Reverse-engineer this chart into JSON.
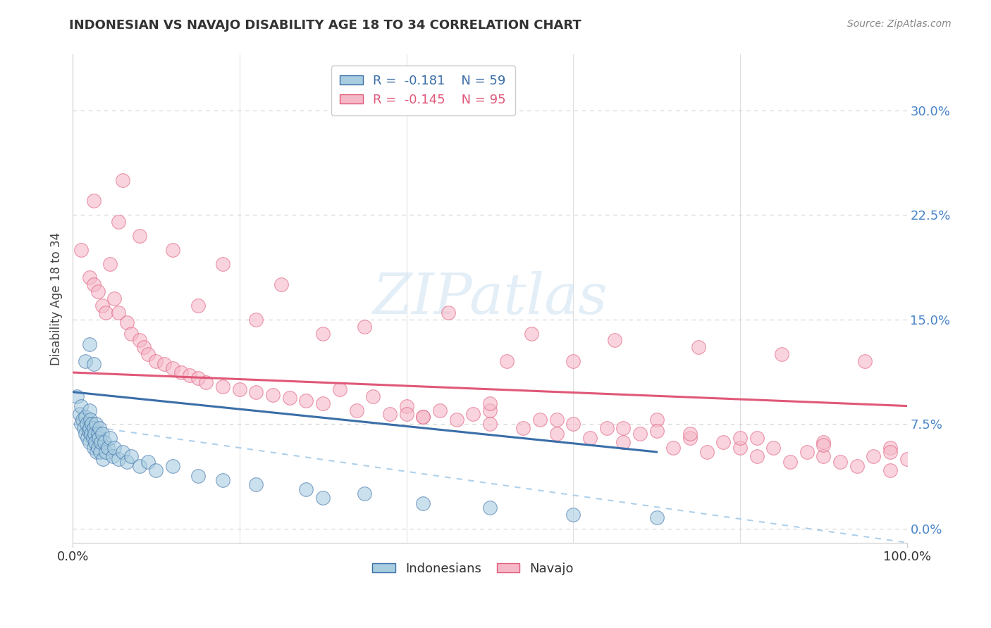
{
  "title": "INDONESIAN VS NAVAJO DISABILITY AGE 18 TO 34 CORRELATION CHART",
  "source": "Source: ZipAtlas.com",
  "ylabel": "Disability Age 18 to 34",
  "xlim": [
    0.0,
    1.0
  ],
  "ylim": [
    -0.01,
    0.34
  ],
  "yticks": [
    0.0,
    0.075,
    0.15,
    0.225,
    0.3
  ],
  "ytick_labels": [
    "0.0%",
    "7.5%",
    "15.0%",
    "22.5%",
    "30.0%"
  ],
  "xtick_labels": [
    "0.0%",
    "100.0%"
  ],
  "legend_r_indonesian": "R =  -0.181",
  "legend_n_indonesian": "N = 59",
  "legend_r_navajo": "R =  -0.145",
  "legend_n_navajo": "N = 95",
  "color_indonesian": "#a8cce0",
  "color_navajo": "#f5b8c8",
  "color_trendline_indonesian": "#3a6ea8",
  "color_trendline_navajo": "#e05878",
  "color_trendline_dashed": "#a0c8e8",
  "background_color": "#ffffff",
  "grid_color": "#d0d0d0",
  "indonesian_x": [
    0.005,
    0.008,
    0.01,
    0.01,
    0.012,
    0.013,
    0.015,
    0.015,
    0.017,
    0.018,
    0.019,
    0.02,
    0.02,
    0.02,
    0.021,
    0.022,
    0.023,
    0.024,
    0.025,
    0.025,
    0.026,
    0.027,
    0.028,
    0.029,
    0.03,
    0.03,
    0.031,
    0.032,
    0.033,
    0.034,
    0.035,
    0.036,
    0.038,
    0.04,
    0.042,
    0.045,
    0.048,
    0.05,
    0.055,
    0.06,
    0.065,
    0.07,
    0.08,
    0.09,
    0.1,
    0.12,
    0.15,
    0.18,
    0.22,
    0.28,
    0.35,
    0.42,
    0.5,
    0.6,
    0.7,
    0.015,
    0.02,
    0.025,
    0.3
  ],
  "indonesian_y": [
    0.095,
    0.082,
    0.088,
    0.075,
    0.078,
    0.072,
    0.08,
    0.068,
    0.075,
    0.065,
    0.07,
    0.085,
    0.072,
    0.062,
    0.078,
    0.068,
    0.075,
    0.065,
    0.072,
    0.058,
    0.068,
    0.062,
    0.075,
    0.055,
    0.068,
    0.058,
    0.065,
    0.072,
    0.055,
    0.062,
    0.068,
    0.05,
    0.062,
    0.055,
    0.058,
    0.065,
    0.052,
    0.058,
    0.05,
    0.055,
    0.048,
    0.052,
    0.045,
    0.048,
    0.042,
    0.045,
    0.038,
    0.035,
    0.032,
    0.028,
    0.025,
    0.018,
    0.015,
    0.01,
    0.008,
    0.12,
    0.132,
    0.118,
    0.022
  ],
  "navajo_x": [
    0.01,
    0.02,
    0.025,
    0.03,
    0.035,
    0.04,
    0.045,
    0.05,
    0.055,
    0.06,
    0.065,
    0.07,
    0.08,
    0.085,
    0.09,
    0.1,
    0.11,
    0.12,
    0.13,
    0.14,
    0.15,
    0.16,
    0.18,
    0.2,
    0.22,
    0.24,
    0.26,
    0.28,
    0.3,
    0.32,
    0.34,
    0.36,
    0.38,
    0.4,
    0.42,
    0.44,
    0.46,
    0.48,
    0.5,
    0.52,
    0.54,
    0.56,
    0.58,
    0.6,
    0.62,
    0.64,
    0.66,
    0.68,
    0.7,
    0.72,
    0.74,
    0.76,
    0.78,
    0.8,
    0.82,
    0.84,
    0.86,
    0.88,
    0.9,
    0.92,
    0.94,
    0.96,
    0.98,
    1.0,
    0.025,
    0.055,
    0.08,
    0.12,
    0.18,
    0.25,
    0.35,
    0.45,
    0.55,
    0.65,
    0.75,
    0.85,
    0.95,
    0.42,
    0.5,
    0.58,
    0.66,
    0.74,
    0.82,
    0.9,
    0.98,
    0.15,
    0.22,
    0.3,
    0.4,
    0.5,
    0.6,
    0.7,
    0.8,
    0.9,
    0.98
  ],
  "navajo_y": [
    0.2,
    0.18,
    0.175,
    0.17,
    0.16,
    0.155,
    0.19,
    0.165,
    0.155,
    0.25,
    0.148,
    0.14,
    0.135,
    0.13,
    0.125,
    0.12,
    0.118,
    0.115,
    0.112,
    0.11,
    0.108,
    0.105,
    0.102,
    0.1,
    0.098,
    0.096,
    0.094,
    0.092,
    0.09,
    0.1,
    0.085,
    0.095,
    0.082,
    0.088,
    0.08,
    0.085,
    0.078,
    0.082,
    0.075,
    0.12,
    0.072,
    0.078,
    0.068,
    0.12,
    0.065,
    0.072,
    0.062,
    0.068,
    0.078,
    0.058,
    0.065,
    0.055,
    0.062,
    0.058,
    0.052,
    0.058,
    0.048,
    0.055,
    0.052,
    0.048,
    0.045,
    0.052,
    0.042,
    0.05,
    0.235,
    0.22,
    0.21,
    0.2,
    0.19,
    0.175,
    0.145,
    0.155,
    0.14,
    0.135,
    0.13,
    0.125,
    0.12,
    0.08,
    0.085,
    0.078,
    0.072,
    0.068,
    0.065,
    0.062,
    0.058,
    0.16,
    0.15,
    0.14,
    0.082,
    0.09,
    0.075,
    0.07,
    0.065,
    0.06,
    0.055
  ],
  "trendline_indo_x0": 0.0,
  "trendline_indo_y0": 0.098,
  "trendline_indo_x1": 0.7,
  "trendline_indo_y1": 0.055,
  "trendline_nav_x0": 0.0,
  "trendline_nav_y0": 0.112,
  "trendline_nav_x1": 1.0,
  "trendline_nav_y1": 0.088,
  "trendline_dash_x0": 0.0,
  "trendline_dash_y0": 0.075,
  "trendline_dash_x1": 1.0,
  "trendline_dash_y1": -0.01
}
